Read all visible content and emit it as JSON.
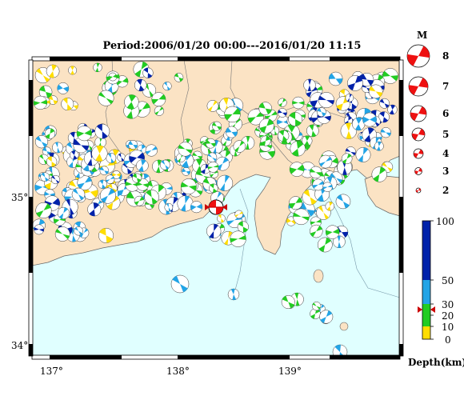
{
  "title": "Period:2006/01/20 00:00---2016/01/20 11:15",
  "axes": {
    "lat_labels": [
      "35°",
      "34°"
    ],
    "lon_labels": [
      "137°",
      "138°",
      "139°"
    ]
  },
  "magnitude_legend": {
    "header": "M",
    "entries": [
      "8",
      "7",
      "6",
      "5",
      "4",
      "3",
      "2"
    ]
  },
  "depth_legend": {
    "unit_label": "Depth(km)",
    "ticks": [
      "100",
      "50",
      "30",
      "20",
      "10",
      "0"
    ],
    "selected_depth_km": 25
  },
  "colors": {
    "sea": "#e0ffff",
    "land": "#fbe3c4",
    "depth_0_10": "#ffdd00",
    "depth_10_30": "#22cc22",
    "depth_30_50": "#22a4e6",
    "depth_50_100": "#0022aa",
    "mechanism_highlight": "#ee1111"
  },
  "markers": [
    {
      "name": "main-event",
      "lon": 138.28,
      "lat": 34.93
    }
  ]
}
